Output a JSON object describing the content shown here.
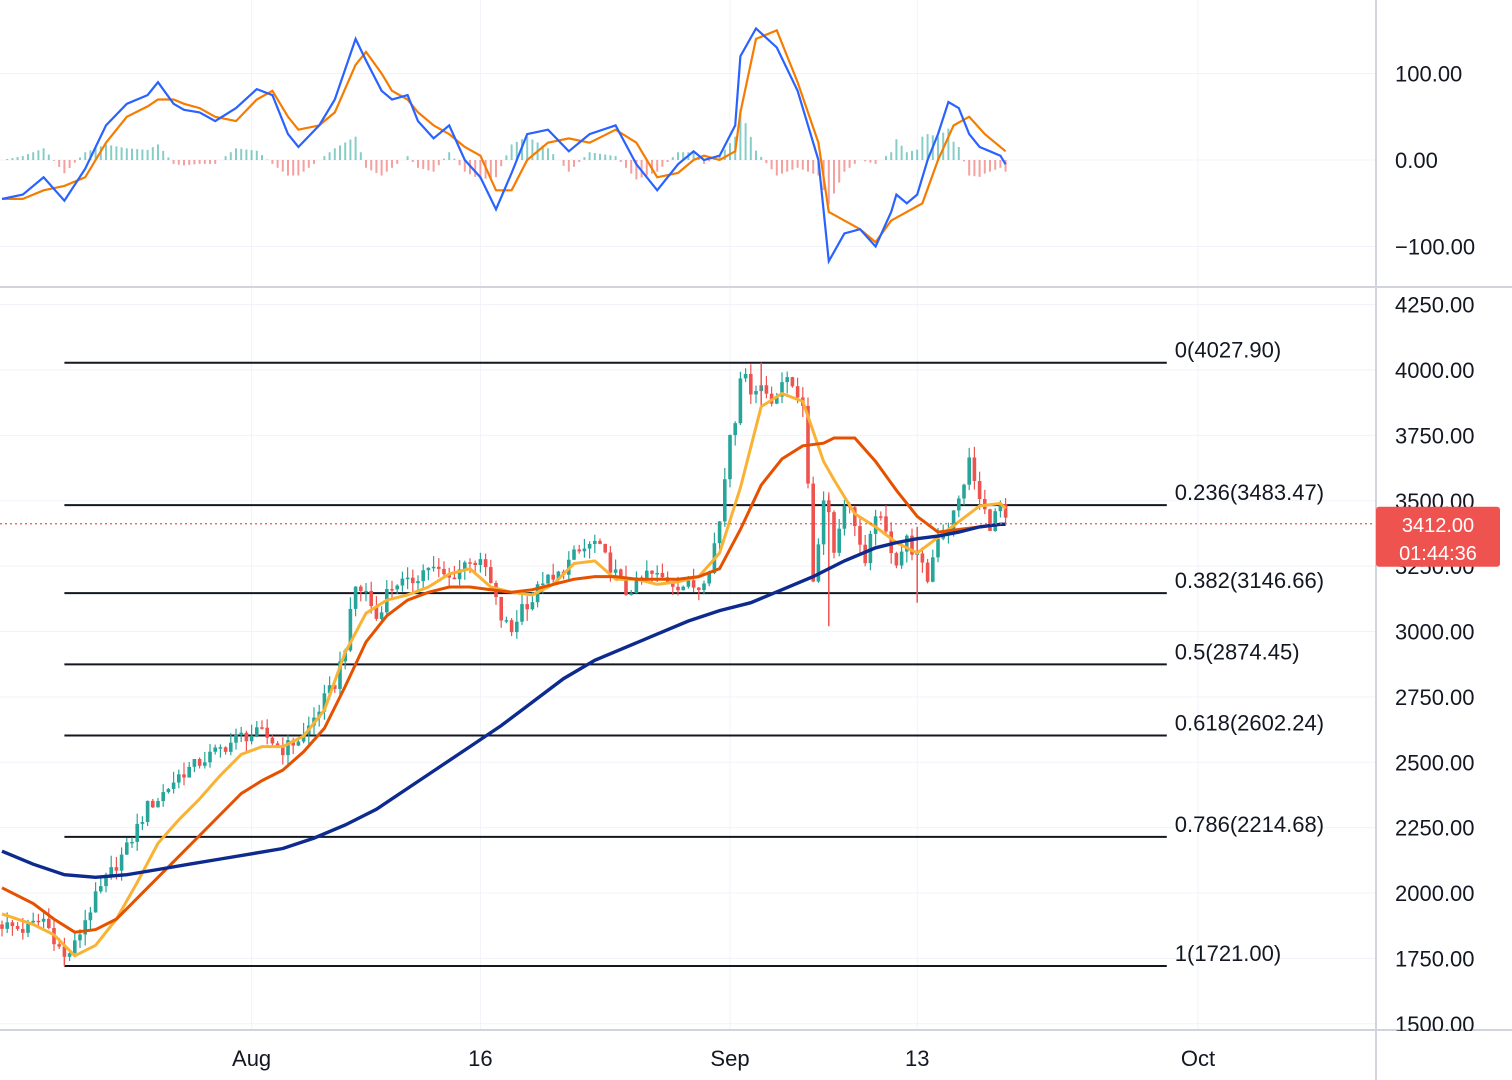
{
  "chart_data": [
    {
      "type": "line",
      "panel": "oscillator",
      "ylim": [
        -130,
        185
      ],
      "y_ticks": [
        "100.00",
        "0.00",
        "−100.00"
      ],
      "y_tick_values": [
        100,
        0,
        -100
      ],
      "colors": {
        "macd": "#2962ff",
        "signal": "#f57c00",
        "hist_pos": "#26a69a",
        "hist_neg": "#ef5350"
      },
      "series": [
        {
          "key": "macd",
          "x": [
            0,
            4,
            8,
            12,
            16,
            20,
            24,
            28,
            30,
            33,
            35,
            38,
            41,
            45,
            49,
            52,
            55,
            57,
            61,
            64,
            68,
            70,
            73,
            75,
            78,
            80,
            83,
            86,
            89,
            92,
            95,
            98,
            101,
            105,
            109,
            113,
            118,
            122,
            126,
            130,
            133,
            135,
            138,
            141,
            142,
            145,
            149,
            153,
            157,
            159,
            162,
            165,
            168,
            171
          ],
          "values": [
            -45,
            -40,
            -20,
            -47,
            -10,
            40,
            65,
            75,
            90,
            65,
            58,
            55,
            45,
            60,
            82,
            75,
            30,
            15,
            40,
            70,
            140,
            115,
            80,
            70,
            75,
            45,
            25,
            40,
            0,
            -20,
            -57,
            -15,
            30,
            35,
            10,
            30,
            40,
            -5,
            -35,
            -5,
            10,
            0,
            5,
            40,
            120,
            152,
            130,
            80,
            0,
            -117,
            -85,
            -80,
            -100,
            -60
          ],
          "tail": {
            "x": [
              172,
              174,
              176,
              178,
              180,
              182,
              184,
              186,
              188,
              190,
              192,
              193
            ],
            "values": [
              -40,
              -50,
              -40,
              0,
              30,
              67,
              60,
              30,
              15,
              10,
              5,
              -5
            ]
          }
        },
        {
          "key": "signal",
          "x": [
            0,
            4,
            8,
            12,
            16,
            20,
            24,
            28,
            30,
            33,
            35,
            38,
            41,
            45,
            49,
            52,
            55,
            57,
            61,
            64,
            68,
            70,
            73,
            75,
            78,
            80,
            83,
            86,
            89,
            92,
            95,
            98,
            101,
            105,
            109,
            113,
            118,
            122,
            126,
            130,
            133,
            135,
            138,
            141,
            142,
            145,
            149,
            153,
            157,
            159,
            162,
            165,
            168,
            171,
            174,
            177,
            180,
            183,
            186,
            189,
            193
          ],
          "values": [
            -45,
            -45,
            -35,
            -30,
            -20,
            20,
            50,
            62,
            70,
            70,
            65,
            60,
            50,
            45,
            70,
            80,
            50,
            35,
            40,
            55,
            110,
            125,
            100,
            80,
            70,
            55,
            40,
            30,
            15,
            5,
            -35,
            -35,
            0,
            20,
            25,
            20,
            35,
            20,
            -20,
            -15,
            0,
            5,
            0,
            10,
            55,
            140,
            150,
            90,
            20,
            -60,
            -70,
            -80,
            -95,
            -70,
            -60,
            -50,
            0,
            40,
            50,
            30,
            10
          ]
        }
      ]
    },
    {
      "type": "candlestick",
      "panel": "price",
      "ylim": [
        1490,
        4300
      ],
      "y_ticks": [
        "4250.00",
        "4000.00",
        "3750.00",
        "3500.00",
        "3250.00",
        "3000.00",
        "2750.00",
        "2500.00",
        "2250.00",
        "2000.00",
        "1750.00",
        "1500.00"
      ],
      "y_tick_values": [
        4250,
        4000,
        3750,
        3500,
        3250,
        3000,
        2750,
        2500,
        2250,
        2000,
        1750,
        1500
      ],
      "x_ticks": [
        {
          "label": "Aug",
          "day": 48
        },
        {
          "label": "16",
          "day": 92
        },
        {
          "label": "Sep",
          "day": 140
        },
        {
          "label": "13",
          "day": 176
        },
        {
          "label": "Oct",
          "day": 230
        }
      ],
      "current_price": {
        "value": 3412,
        "label": "3412.00",
        "countdown": "01:44:36"
      },
      "fibonacci": {
        "x_start": 12,
        "x_end": 224,
        "levels": [
          {
            "label": "0(4027.90)",
            "value": 4027.9
          },
          {
            "label": "0.236(3483.47)",
            "value": 3483.47
          },
          {
            "label": "0.382(3146.66)",
            "value": 3146.66
          },
          {
            "label": "0.5(2874.45)",
            "value": 2874.45
          },
          {
            "label": "0.618(2602.24)",
            "value": 2602.24
          },
          {
            "label": "0.786(2214.68)",
            "value": 2214.68
          },
          {
            "label": "1(1721.00)",
            "value": 1721.0
          }
        ]
      },
      "price_path": {
        "x": [
          0,
          4,
          8,
          10,
          12,
          14,
          16,
          18,
          20,
          24,
          28,
          30,
          34,
          38,
          42,
          46,
          50,
          54,
          58,
          62,
          64,
          66,
          68,
          70,
          72,
          74,
          76,
          78,
          82,
          86,
          90,
          93,
          96,
          98,
          100,
          102,
          104,
          106,
          110,
          114,
          116,
          118,
          120,
          122,
          124,
          126,
          130,
          134,
          136,
          138,
          140,
          141,
          142,
          144,
          146,
          148,
          150,
          152,
          154,
          156,
          158,
          159,
          160,
          162,
          164,
          166,
          168,
          170,
          172,
          174,
          176,
          178,
          180,
          182,
          184,
          186,
          188,
          190,
          192,
          193
        ],
        "values": [
          1880,
          1860,
          1900,
          1830,
          1750,
          1800,
          1900,
          1980,
          2050,
          2170,
          2330,
          2360,
          2450,
          2500,
          2550,
          2600,
          2610,
          2550,
          2600,
          2740,
          2800,
          2950,
          3170,
          3150,
          3050,
          3150,
          3190,
          3180,
          3250,
          3200,
          3280,
          3240,
          3050,
          3000,
          3100,
          3120,
          3200,
          3190,
          3290,
          3340,
          3280,
          3220,
          3150,
          3180,
          3220,
          3210,
          3180,
          3170,
          3250,
          3420,
          3760,
          3820,
          3990,
          3930,
          3940,
          3880,
          3960,
          3940,
          3880,
          3200,
          3500,
          3480,
          3300,
          3500,
          3420,
          3240,
          3460,
          3370,
          3270,
          3350,
          3280,
          3200,
          3370,
          3400,
          3500,
          3650,
          3500,
          3410,
          3480,
          3412
        ],
        "wicks": [
          {
            "x": 159,
            "low": 3020,
            "high": 3520
          },
          {
            "x": 176,
            "low": 3110,
            "high": 3400
          },
          {
            "x": 12,
            "low": 1720,
            "high": 1800
          },
          {
            "x": 146,
            "low": 3860,
            "high": 4028
          }
        ]
      },
      "series": [
        {
          "key": "ma_yellow",
          "color": "#f9b233",
          "x": [
            0,
            6,
            10,
            14,
            18,
            22,
            26,
            30,
            34,
            38,
            42,
            46,
            50,
            54,
            58,
            62,
            66,
            70,
            74,
            78,
            82,
            86,
            90,
            94,
            98,
            102,
            106,
            110,
            114,
            118,
            122,
            126,
            130,
            134,
            138,
            142,
            146,
            150,
            154,
            158,
            160,
            164,
            168,
            172,
            176,
            180,
            184,
            188,
            192,
            193
          ],
          "values": [
            1920,
            1880,
            1840,
            1760,
            1800,
            1900,
            2040,
            2190,
            2280,
            2360,
            2450,
            2530,
            2560,
            2560,
            2600,
            2700,
            2920,
            3070,
            3120,
            3140,
            3170,
            3220,
            3240,
            3170,
            3150,
            3140,
            3180,
            3260,
            3270,
            3200,
            3200,
            3180,
            3190,
            3210,
            3300,
            3550,
            3860,
            3910,
            3880,
            3650,
            3580,
            3450,
            3400,
            3340,
            3300,
            3360,
            3420,
            3480,
            3490,
            3470
          ]
        },
        {
          "key": "ma_orange",
          "color": "#e65100",
          "x": [
            0,
            6,
            10,
            14,
            18,
            22,
            26,
            30,
            34,
            38,
            42,
            46,
            50,
            54,
            58,
            62,
            66,
            70,
            74,
            78,
            82,
            86,
            90,
            94,
            98,
            102,
            106,
            110,
            114,
            118,
            122,
            126,
            130,
            134,
            138,
            142,
            146,
            150,
            154,
            158,
            160,
            164,
            168,
            172,
            176,
            180,
            184,
            188,
            192,
            193
          ],
          "values": [
            2020,
            1960,
            1900,
            1850,
            1860,
            1900,
            1980,
            2060,
            2140,
            2220,
            2300,
            2380,
            2430,
            2470,
            2540,
            2630,
            2790,
            2960,
            3060,
            3120,
            3150,
            3170,
            3170,
            3160,
            3150,
            3160,
            3180,
            3200,
            3210,
            3210,
            3200,
            3200,
            3200,
            3210,
            3240,
            3390,
            3560,
            3660,
            3710,
            3720,
            3740,
            3740,
            3650,
            3540,
            3440,
            3380,
            3390,
            3400,
            3410,
            3410
          ]
        },
        {
          "key": "ma_blue",
          "color": "#0d2b8e",
          "x": [
            0,
            6,
            12,
            18,
            24,
            30,
            36,
            42,
            48,
            54,
            60,
            66,
            72,
            78,
            84,
            90,
            96,
            102,
            108,
            114,
            120,
            126,
            132,
            138,
            144,
            150,
            156,
            162,
            168,
            172,
            176,
            180,
            184,
            188,
            192,
            193
          ],
          "values": [
            2160,
            2110,
            2070,
            2060,
            2070,
            2090,
            2110,
            2130,
            2150,
            2170,
            2210,
            2260,
            2320,
            2400,
            2480,
            2560,
            2640,
            2730,
            2820,
            2890,
            2940,
            2990,
            3040,
            3080,
            3110,
            3160,
            3210,
            3270,
            3320,
            3340,
            3355,
            3365,
            3380,
            3400,
            3410,
            3410
          ]
        }
      ]
    }
  ]
}
